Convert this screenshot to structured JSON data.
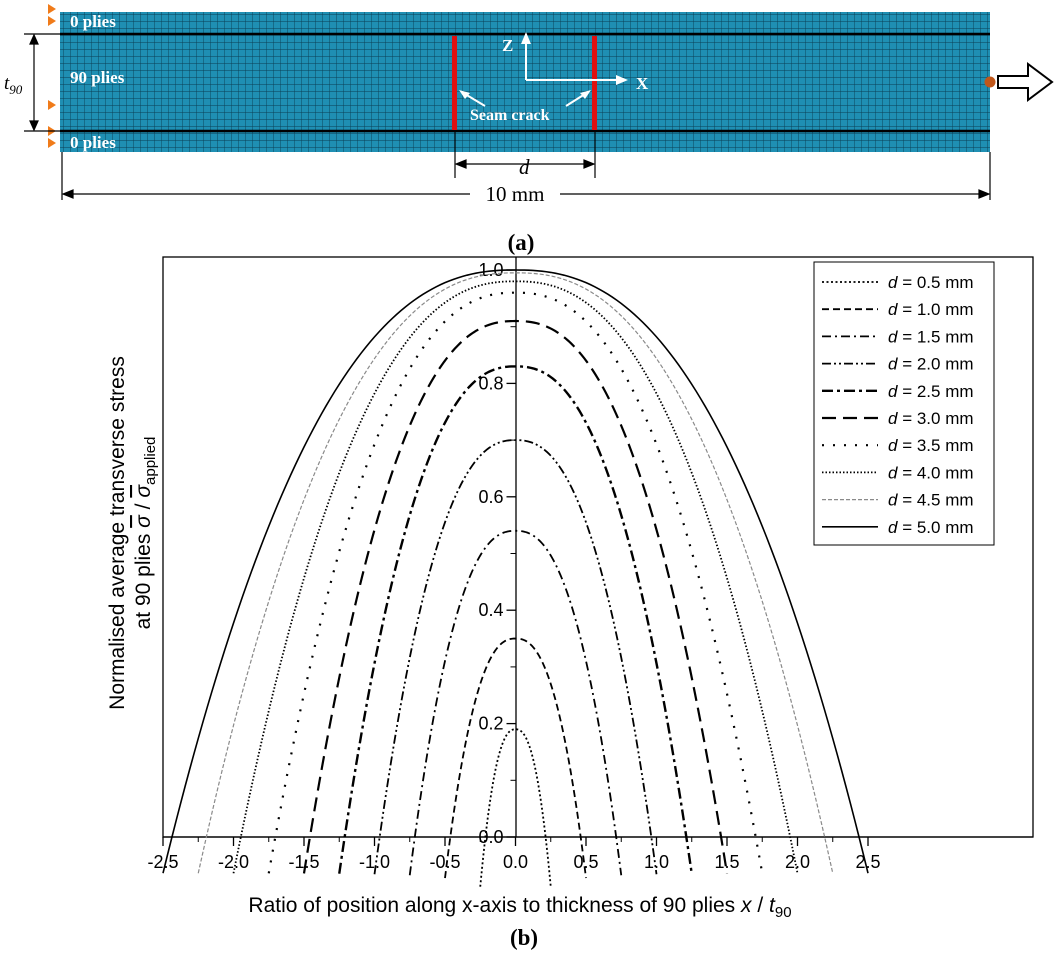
{
  "figure_a": {
    "panel_label": "(a)",
    "top_ply_label": "0 plies",
    "middle_ply_label": "90 plies",
    "bottom_ply_label": "0 plies",
    "thickness_label_main": "t",
    "thickness_label_sub": "90",
    "axis_z_label": "Z",
    "axis_x_label": "X",
    "crack_label": "Seam crack",
    "spacing_label": "d",
    "length_label": "10 mm",
    "mesh_color": "#1f8fb3",
    "crack_color": "#e01010"
  },
  "figure_b": {
    "panel_label": "(b)",
    "ylabel_line1": "Normalised average transverse stress",
    "ylabel_line2_prefix": "at 90 plies ",
    "ylabel_sigma": "σ",
    "ylabel_slash": " / ",
    "ylabel_sigma2": "σ",
    "ylabel_sub": "applied",
    "xlabel_prefix": "Ratio of position along x-axis to thickness of 90 plies ",
    "xlabel_var": "x",
    "xlabel_slash": " / ",
    "xlabel_t": "t",
    "xlabel_sub": "90"
  },
  "chart_data": {
    "type": "line",
    "xlim": [
      -2.5,
      2.5
    ],
    "ylim": [
      0.0,
      1.0
    ],
    "x_ticks": [
      -2.5,
      -2.0,
      -1.5,
      -1.0,
      -0.5,
      0.0,
      0.5,
      1.0,
      1.5,
      2.0,
      2.5
    ],
    "x_tick_labels": [
      "-2.5",
      "-2.0",
      "-1.5",
      "-1.0",
      "-0.5",
      "0.0",
      "0.5",
      "1.0",
      "1.5",
      "2.0",
      "2.5"
    ],
    "y_ticks": [
      0.0,
      0.2,
      0.4,
      0.6,
      0.8,
      1.0
    ],
    "y_tick_labels": [
      "0.0",
      "0.2",
      "0.4",
      "0.6",
      "0.8",
      "1.0"
    ],
    "grid": false,
    "legend_position": "top-right",
    "series": [
      {
        "name": "d = 0.5 mm",
        "half_width": 0.25,
        "peak": 0.19,
        "end_y": 0.06,
        "dash": "2,2.5",
        "width": 1.8
      },
      {
        "name": "d = 1.0 mm",
        "half_width": 0.5,
        "peak": 0.35,
        "end_y": 0.06,
        "dash": "7,4",
        "width": 1.8
      },
      {
        "name": "d = 1.5 mm",
        "half_width": 0.75,
        "peak": 0.54,
        "end_y": 0.06,
        "dash": "9,4,2,4",
        "width": 1.8
      },
      {
        "name": "d = 2.0 mm",
        "half_width": 1.0,
        "peak": 0.7,
        "end_y": 0.06,
        "dash": "9,3,2,3,2,3",
        "width": 1.8
      },
      {
        "name": "d = 2.5 mm",
        "half_width": 1.25,
        "peak": 0.83,
        "end_y": 0.06,
        "dash": "11,4,3,4",
        "width": 2.4
      },
      {
        "name": "d = 3.0 mm",
        "half_width": 1.5,
        "peak": 0.91,
        "end_y": 0.06,
        "dash": "14,7",
        "width": 2.2
      },
      {
        "name": "d = 3.5 mm",
        "half_width": 1.75,
        "peak": 0.96,
        "end_y": 0.06,
        "dash": "2,9",
        "width": 2.2
      },
      {
        "name": "d = 4.0 mm",
        "half_width": 2.0,
        "peak": 0.98,
        "end_y": 0.06,
        "dash": "1.5,2",
        "width": 1.8
      },
      {
        "name": "d = 4.5 mm",
        "half_width": 2.25,
        "peak": 0.995,
        "end_y": 0.06,
        "dash": "4,2",
        "width": 1.2,
        "color": "#8a8a8a"
      },
      {
        "name": "d = 5.0 mm",
        "half_width": 2.5,
        "peak": 1.0,
        "end_y": 0.06,
        "dash": "",
        "width": 1.6
      }
    ]
  }
}
